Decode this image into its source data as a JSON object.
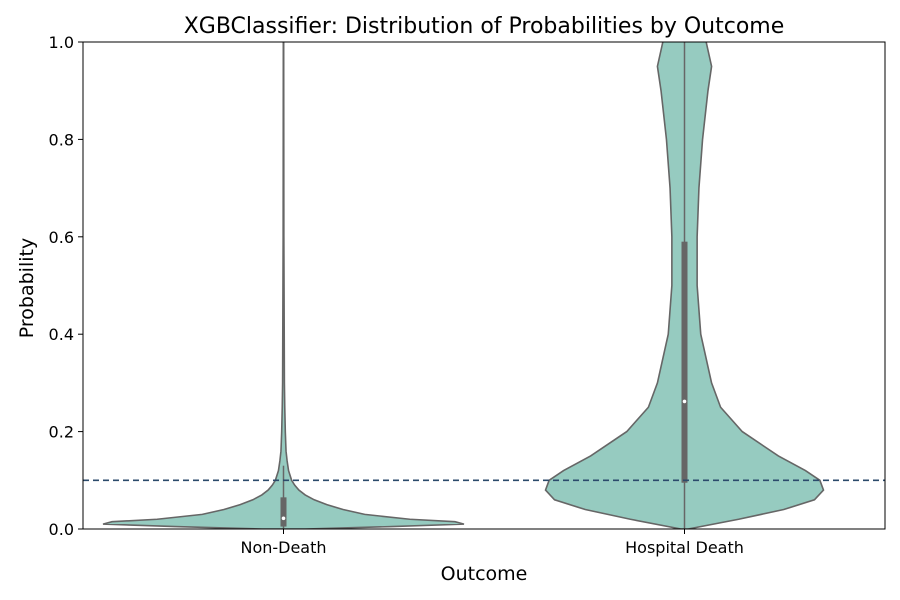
{
  "chart_data": {
    "type": "violin",
    "title": "XGBClassifier: Distribution of Probabilities by Outcome",
    "xlabel": "Outcome",
    "ylabel": "Probability",
    "categories": [
      "Non-Death",
      "Hospital Death"
    ],
    "ylim": [
      0.0,
      1.0
    ],
    "yticks": [
      0.0,
      0.2,
      0.4,
      0.6,
      0.8,
      1.0
    ],
    "ytick_labels": [
      "0.0",
      "0.2",
      "0.4",
      "0.6",
      "0.8",
      "1.0"
    ],
    "threshold": 0.1,
    "grid": false,
    "legend": "none",
    "colors": {
      "violin_fill": "#96cbc0",
      "violin_edge": "#666666",
      "box": "#666666",
      "median": "#ffffff",
      "threshold_line": "#2b4a6b"
    },
    "violins": [
      {
        "name": "Non-Death",
        "box": {
          "q1": 0.005,
          "median": 0.022,
          "q3": 0.065,
          "whisker_low": 0.0,
          "whisker_high": 0.13
        },
        "profile": [
          [
            0.0,
            0.12
          ],
          [
            0.005,
            0.6
          ],
          [
            0.01,
            1.0
          ],
          [
            0.015,
            0.95
          ],
          [
            0.02,
            0.7
          ],
          [
            0.03,
            0.45
          ],
          [
            0.04,
            0.33
          ],
          [
            0.05,
            0.24
          ],
          [
            0.06,
            0.17
          ],
          [
            0.07,
            0.12
          ],
          [
            0.08,
            0.085
          ],
          [
            0.09,
            0.062
          ],
          [
            0.1,
            0.045
          ],
          [
            0.12,
            0.028
          ],
          [
            0.14,
            0.02
          ],
          [
            0.16,
            0.014
          ],
          [
            0.2,
            0.01
          ],
          [
            0.25,
            0.007
          ],
          [
            0.3,
            0.005
          ],
          [
            0.4,
            0.004
          ],
          [
            0.5,
            0.003
          ],
          [
            0.6,
            0.002
          ],
          [
            0.8,
            0.0015
          ],
          [
            1.0,
            0.001
          ]
        ]
      },
      {
        "name": "Hospital Death",
        "box": {
          "q1": 0.095,
          "median": 0.262,
          "q3": 0.59,
          "whisker_low": 0.0,
          "whisker_high": 1.0
        },
        "profile": [
          [
            0.0,
            0.02
          ],
          [
            0.02,
            0.3
          ],
          [
            0.04,
            0.55
          ],
          [
            0.06,
            0.72
          ],
          [
            0.08,
            0.77
          ],
          [
            0.1,
            0.75
          ],
          [
            0.12,
            0.67
          ],
          [
            0.15,
            0.52
          ],
          [
            0.2,
            0.32
          ],
          [
            0.25,
            0.2
          ],
          [
            0.3,
            0.15
          ],
          [
            0.4,
            0.09
          ],
          [
            0.5,
            0.07
          ],
          [
            0.6,
            0.07
          ],
          [
            0.7,
            0.08
          ],
          [
            0.8,
            0.1
          ],
          [
            0.9,
            0.13
          ],
          [
            0.95,
            0.15
          ],
          [
            1.0,
            0.12
          ],
          [
            1.02,
            0.04
          ],
          [
            1.03,
            0.0
          ]
        ]
      }
    ]
  }
}
